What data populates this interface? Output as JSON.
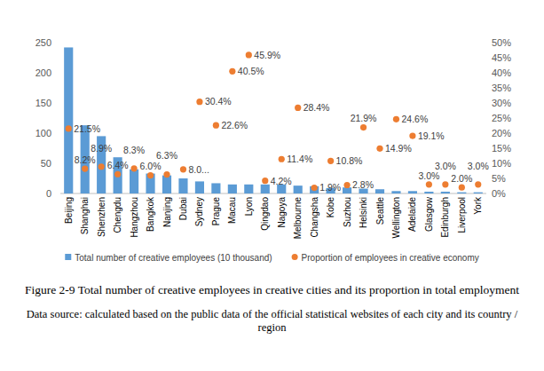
{
  "chart_data": {
    "type": "bar",
    "title": "Figure 2-9 Total number of creative employees in creative cities and its proportion in total employment",
    "annotations": [
      "Data source: calculated based on the public data of the official statistical websites of each city and its country / region"
    ],
    "categories": [
      "Beijing",
      "Shanghai",
      "Shenzhen",
      "Chengdu",
      "Hangzhou",
      "Bangkok",
      "Nanjing",
      "Dubai",
      "Sydney",
      "Prague",
      "Macau",
      "Lyon",
      "Qingdao",
      "Nagoya",
      "Melbourne",
      "Changsha",
      "Kobe",
      "Suzhou",
      "Helsinki",
      "Seattle",
      "Wellington",
      "Adelaide",
      "Glasgow",
      "Edinburgh",
      "Liverpool",
      "York"
    ],
    "series": [
      {
        "name": "Total number of creative employees (10 thousand)",
        "type": "bar",
        "color": "#5b9bd5",
        "values": [
          242,
          113,
          95,
          60,
          40,
          33,
          30,
          25,
          20,
          17,
          15,
          15,
          15,
          15,
          13,
          12,
          9,
          10,
          8,
          7,
          4,
          4,
          3,
          3,
          2,
          2
        ]
      },
      {
        "name": "Proportion of employees in creative economy",
        "type": "scatter",
        "axis": "y2",
        "color": "#ed7d31",
        "marker": "circle",
        "data_labels": true,
        "values": [
          21.5,
          8.2,
          8.9,
          6.4,
          8.3,
          6.0,
          6.3,
          8.0,
          30.4,
          22.6,
          40.5,
          45.9,
          4.2,
          11.4,
          28.4,
          1.9,
          10.8,
          2.8,
          21.9,
          14.9,
          24.6,
          19.1,
          3.0,
          3.0,
          2.0,
          3.0
        ],
        "value_labels": [
          "21.5%",
          "8.2%",
          "8.9%",
          "6.4%",
          "8.3%",
          "6.0%",
          "6.3%",
          "8.0...",
          "30.4%",
          "22.6%",
          "40.5%",
          "45.9%",
          "4.2%",
          "11.4%",
          "28.4%",
          "1.9%",
          "10.8%",
          "2.8%",
          "21.9%",
          "14.9%",
          "24.6%",
          "19.1%",
          "3.0%",
          "3.0%",
          "2.0%",
          "3.0%"
        ]
      }
    ],
    "ylim": [
      0,
      250
    ],
    "yticks": [
      0,
      50,
      100,
      150,
      200,
      250
    ],
    "y2lim": [
      0,
      50
    ],
    "y2ticks": [
      {
        "value": 0,
        "label": "0%"
      },
      {
        "value": 5,
        "label": "5%"
      },
      {
        "value": 10,
        "label": "10%"
      },
      {
        "value": 15,
        "label": "15%"
      },
      {
        "value": 20,
        "label": "20%"
      },
      {
        "value": 25,
        "label": "25%"
      },
      {
        "value": 30,
        "label": "30%"
      },
      {
        "value": 35,
        "label": "35%"
      },
      {
        "value": 40,
        "label": "40%"
      },
      {
        "value": 45,
        "label": "45%"
      },
      {
        "value": 50,
        "label": "50%"
      }
    ],
    "grid": false,
    "legend": "bottom"
  }
}
